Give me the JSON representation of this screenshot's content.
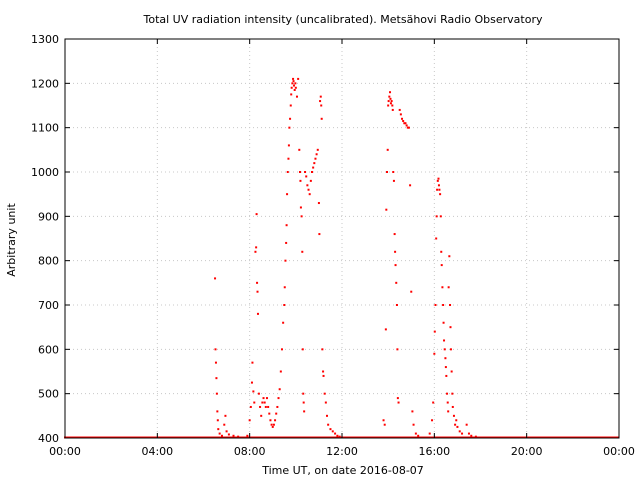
{
  "chart_data": {
    "type": "scatter",
    "title": "Total UV radiation intensity (uncalibrated). Metsähovi Radio Observatory",
    "xlabel": "Time UT, on date 2016-08-07",
    "ylabel": "Arbitrary unit",
    "x_unit": "hours UT",
    "xlim": [
      0,
      24
    ],
    "ylim": [
      400,
      1300
    ],
    "xticks": [
      {
        "value": 0,
        "label": "00:00"
      },
      {
        "value": 4,
        "label": "04:00"
      },
      {
        "value": 8,
        "label": "08:00"
      },
      {
        "value": 12,
        "label": "12:00"
      },
      {
        "value": 16,
        "label": "16:00"
      },
      {
        "value": 20,
        "label": "20:00"
      },
      {
        "value": 24,
        "label": "00:00"
      }
    ],
    "yticks": [
      {
        "value": 400,
        "label": "400"
      },
      {
        "value": 500,
        "label": "500"
      },
      {
        "value": 600,
        "label": "600"
      },
      {
        "value": 700,
        "label": "700"
      },
      {
        "value": 800,
        "label": "800"
      },
      {
        "value": 900,
        "label": "900"
      },
      {
        "value": 1000,
        "label": "1000"
      },
      {
        "value": 1100,
        "label": "1100"
      },
      {
        "value": 1200,
        "label": "1200"
      },
      {
        "value": 1300,
        "label": "1300"
      }
    ],
    "grid": true,
    "baseline": 400,
    "series": [
      {
        "color": "#ff0000",
        "marker": "point",
        "points": [
          [
            6.5,
            760
          ],
          [
            6.52,
            600
          ],
          [
            6.54,
            570
          ],
          [
            6.56,
            535
          ],
          [
            6.58,
            500
          ],
          [
            6.6,
            460
          ],
          [
            6.62,
            440
          ],
          [
            6.64,
            420
          ],
          [
            6.7,
            410
          ],
          [
            6.8,
            405
          ],
          [
            6.9,
            430
          ],
          [
            6.95,
            450
          ],
          [
            7.0,
            415
          ],
          [
            7.1,
            408
          ],
          [
            7.3,
            405
          ],
          [
            7.5,
            403
          ],
          [
            7.9,
            405
          ],
          [
            8.0,
            440
          ],
          [
            8.05,
            470
          ],
          [
            8.1,
            525
          ],
          [
            8.12,
            570
          ],
          [
            8.16,
            505
          ],
          [
            8.2,
            480
          ],
          [
            8.25,
            820
          ],
          [
            8.28,
            830
          ],
          [
            8.3,
            905
          ],
          [
            8.32,
            750
          ],
          [
            8.34,
            730
          ],
          [
            8.36,
            680
          ],
          [
            8.4,
            500
          ],
          [
            8.45,
            470
          ],
          [
            8.5,
            450
          ],
          [
            8.55,
            480
          ],
          [
            8.6,
            490
          ],
          [
            8.65,
            480
          ],
          [
            8.7,
            470
          ],
          [
            8.75,
            490
          ],
          [
            8.8,
            470
          ],
          [
            8.85,
            455
          ],
          [
            8.9,
            440
          ],
          [
            8.95,
            430
          ],
          [
            9.0,
            425
          ],
          [
            9.05,
            430
          ],
          [
            9.1,
            440
          ],
          [
            9.15,
            455
          ],
          [
            9.2,
            470
          ],
          [
            9.25,
            490
          ],
          [
            9.3,
            510
          ],
          [
            9.35,
            550
          ],
          [
            9.4,
            600
          ],
          [
            9.45,
            660
          ],
          [
            9.5,
            700
          ],
          [
            9.52,
            740
          ],
          [
            9.55,
            800
          ],
          [
            9.58,
            840
          ],
          [
            9.6,
            880
          ],
          [
            9.62,
            950
          ],
          [
            9.65,
            1000
          ],
          [
            9.68,
            1030
          ],
          [
            9.7,
            1060
          ],
          [
            9.72,
            1100
          ],
          [
            9.75,
            1120
          ],
          [
            9.78,
            1150
          ],
          [
            9.8,
            1175
          ],
          [
            9.82,
            1190
          ],
          [
            9.85,
            1200
          ],
          [
            9.88,
            1210
          ],
          [
            9.9,
            1205
          ],
          [
            9.92,
            1195
          ],
          [
            9.95,
            1185
          ],
          [
            9.98,
            1200
          ],
          [
            10.0,
            1190
          ],
          [
            10.05,
            1170
          ],
          [
            10.1,
            1210
          ],
          [
            10.15,
            1050
          ],
          [
            10.18,
            1000
          ],
          [
            10.2,
            980
          ],
          [
            10.22,
            920
          ],
          [
            10.25,
            900
          ],
          [
            10.28,
            820
          ],
          [
            10.3,
            600
          ],
          [
            10.32,
            500
          ],
          [
            10.34,
            480
          ],
          [
            10.36,
            460
          ],
          [
            10.4,
            1000
          ],
          [
            10.45,
            990
          ],
          [
            10.5,
            970
          ],
          [
            10.55,
            960
          ],
          [
            10.6,
            950
          ],
          [
            10.65,
            980
          ],
          [
            10.7,
            1000
          ],
          [
            10.75,
            1010
          ],
          [
            10.8,
            1020
          ],
          [
            10.85,
            1030
          ],
          [
            10.9,
            1040
          ],
          [
            10.95,
            1050
          ],
          [
            11.0,
            930
          ],
          [
            11.02,
            860
          ],
          [
            11.05,
            1160
          ],
          [
            11.08,
            1170
          ],
          [
            11.1,
            1150
          ],
          [
            11.12,
            1120
          ],
          [
            11.15,
            600
          ],
          [
            11.18,
            550
          ],
          [
            11.2,
            540
          ],
          [
            11.25,
            500
          ],
          [
            11.3,
            480
          ],
          [
            11.35,
            450
          ],
          [
            11.4,
            430
          ],
          [
            11.5,
            420
          ],
          [
            11.6,
            415
          ],
          [
            11.7,
            410
          ],
          [
            11.8,
            405
          ],
          [
            11.9,
            403
          ],
          [
            13.8,
            440
          ],
          [
            13.85,
            430
          ],
          [
            13.9,
            645
          ],
          [
            13.92,
            915
          ],
          [
            13.95,
            1000
          ],
          [
            13.98,
            1050
          ],
          [
            14.0,
            1150
          ],
          [
            14.02,
            1160
          ],
          [
            14.05,
            1170
          ],
          [
            14.08,
            1180
          ],
          [
            14.1,
            1165
          ],
          [
            14.12,
            1155
          ],
          [
            14.15,
            1160
          ],
          [
            14.18,
            1150
          ],
          [
            14.2,
            1140
          ],
          [
            14.22,
            1000
          ],
          [
            14.25,
            980
          ],
          [
            14.28,
            860
          ],
          [
            14.3,
            820
          ],
          [
            14.32,
            790
          ],
          [
            14.35,
            750
          ],
          [
            14.38,
            700
          ],
          [
            14.4,
            600
          ],
          [
            14.42,
            490
          ],
          [
            14.45,
            480
          ],
          [
            14.5,
            1140
          ],
          [
            14.55,
            1130
          ],
          [
            14.6,
            1120
          ],
          [
            14.65,
            1115
          ],
          [
            14.7,
            1110
          ],
          [
            14.75,
            1110
          ],
          [
            14.8,
            1105
          ],
          [
            14.85,
            1100
          ],
          [
            14.9,
            1100
          ],
          [
            14.95,
            970
          ],
          [
            15.0,
            730
          ],
          [
            15.05,
            460
          ],
          [
            15.1,
            430
          ],
          [
            15.2,
            410
          ],
          [
            15.3,
            405
          ],
          [
            15.8,
            410
          ],
          [
            15.9,
            440
          ],
          [
            15.95,
            480
          ],
          [
            16.0,
            590
          ],
          [
            16.02,
            640
          ],
          [
            16.05,
            700
          ],
          [
            16.08,
            850
          ],
          [
            16.1,
            900
          ],
          [
            16.12,
            960
          ],
          [
            16.15,
            980
          ],
          [
            16.18,
            985
          ],
          [
            16.2,
            970
          ],
          [
            16.22,
            960
          ],
          [
            16.25,
            950
          ],
          [
            16.28,
            900
          ],
          [
            16.3,
            820
          ],
          [
            16.32,
            790
          ],
          [
            16.35,
            740
          ],
          [
            16.38,
            700
          ],
          [
            16.4,
            660
          ],
          [
            16.42,
            620
          ],
          [
            16.45,
            600
          ],
          [
            16.48,
            580
          ],
          [
            16.5,
            560
          ],
          [
            16.52,
            540
          ],
          [
            16.55,
            500
          ],
          [
            16.58,
            480
          ],
          [
            16.6,
            460
          ],
          [
            16.62,
            740
          ],
          [
            16.65,
            810
          ],
          [
            16.68,
            700
          ],
          [
            16.7,
            650
          ],
          [
            16.72,
            600
          ],
          [
            16.75,
            550
          ],
          [
            16.78,
            500
          ],
          [
            16.8,
            470
          ],
          [
            16.85,
            450
          ],
          [
            16.9,
            430
          ],
          [
            16.95,
            440
          ],
          [
            17.0,
            425
          ],
          [
            17.1,
            415
          ],
          [
            17.2,
            410
          ],
          [
            17.4,
            430
          ],
          [
            17.5,
            410
          ],
          [
            17.6,
            405
          ],
          [
            17.8,
            403
          ]
        ]
      }
    ]
  }
}
